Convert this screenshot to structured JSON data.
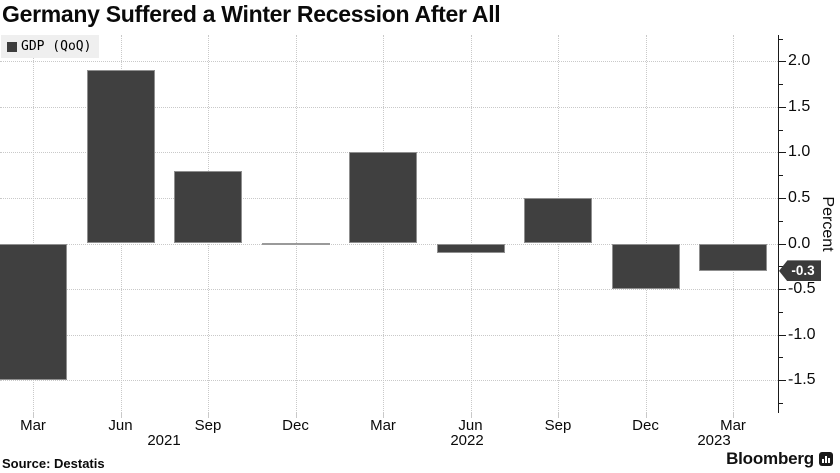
{
  "title": "Germany Suffered a Winter Recession After All",
  "legend": {
    "label": "GDP (QoQ)",
    "swatch_color": "#3d3d3d",
    "swatch_icon": "filled-square"
  },
  "chart_data": {
    "type": "bar",
    "title": "Germany Suffered a Winter Recession After All",
    "series_name": "GDP (QoQ)",
    "categories": [
      "Mar 2021",
      "Jun 2021",
      "Sep 2021",
      "Dec 2021",
      "Mar 2022",
      "Jun 2022",
      "Sep 2022",
      "Dec 2022",
      "Mar 2023"
    ],
    "values": [
      -1.5,
      1.9,
      0.8,
      0.0,
      1.0,
      -0.1,
      0.5,
      -0.5,
      -0.3
    ],
    "month_tick_labels": [
      "Mar",
      "Jun",
      "Sep",
      "Dec",
      "Mar",
      "Jun",
      "Sep",
      "Dec",
      "Mar"
    ],
    "year_labels": [
      "2021",
      "2022",
      "2023"
    ],
    "ylabel": "Percent",
    "y_tick_labels": [
      "2.0",
      "1.5",
      "1.0",
      "0.5",
      "0.0",
      "-0.5",
      "-1.0",
      "-1.5"
    ],
    "ylim": [
      -1.86,
      2.29
    ],
    "y_major_step": 0.5,
    "y_minor_step": 0.25,
    "grid": "dotted",
    "legend_position": "top-left",
    "bar_color": "#404040",
    "annotation": {
      "text": "-0.3",
      "value": -0.3,
      "style": "dark-tag-on-axis"
    }
  },
  "footer": {
    "source": "Source: Destatis",
    "brand": "Bloomberg",
    "brand_icon": "bloomberg-chart-mark"
  }
}
